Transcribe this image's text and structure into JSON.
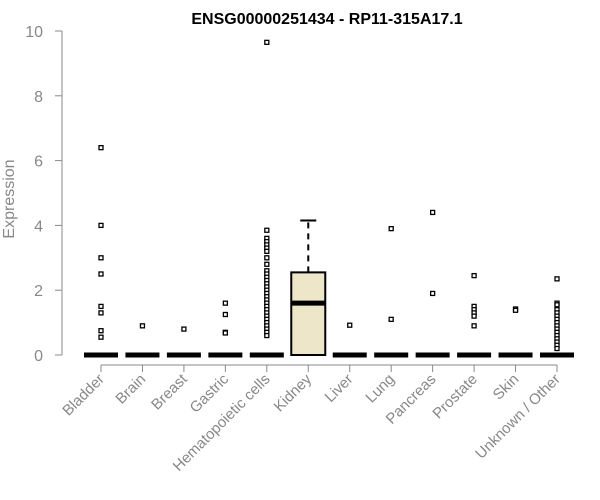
{
  "chart_data": {
    "type": "boxplot",
    "title": "ENSG00000251434 - RP11-315A17.1",
    "xlabel": "",
    "ylabel": "Expression",
    "ylim": [
      0,
      10
    ],
    "yticks": [
      0,
      2,
      4,
      6,
      8,
      10
    ],
    "grid": false,
    "categories": [
      "Bladder",
      "Brain",
      "Breast",
      "Gastric",
      "Hematopoietic cells",
      "Kidney",
      "Liver",
      "Lung",
      "Pancreas",
      "Prostate",
      "Skin",
      "Unknown / Other"
    ],
    "boxes": [
      {
        "category": "Bladder",
        "q1": 0,
        "median": 0,
        "q3": 0,
        "whisker_low": 0,
        "whisker_high": 0,
        "outliers": [
          6.4,
          4.0,
          3.0,
          2.5,
          1.5,
          1.3,
          0.75,
          0.55
        ]
      },
      {
        "category": "Brain",
        "q1": 0,
        "median": 0,
        "q3": 0,
        "whisker_low": 0,
        "whisker_high": 0,
        "outliers": [
          0.9
        ]
      },
      {
        "category": "Breast",
        "q1": 0,
        "median": 0,
        "q3": 0,
        "whisker_low": 0,
        "whisker_high": 0,
        "outliers": [
          0.8
        ]
      },
      {
        "category": "Gastric",
        "q1": 0,
        "median": 0,
        "q3": 0,
        "whisker_low": 0,
        "whisker_high": 0,
        "outliers": [
          1.6,
          1.25,
          0.7,
          0.68
        ]
      },
      {
        "category": "Hematopoietic cells",
        "q1": 0,
        "median": 0,
        "q3": 0,
        "whisker_low": 0,
        "whisker_high": 0,
        "outliers": [
          9.65,
          3.85,
          3.6,
          3.5,
          3.4,
          3.3,
          3.2,
          3.0,
          2.8,
          2.6,
          2.5,
          2.4,
          2.3,
          2.2,
          2.1,
          2.0,
          1.9,
          1.8,
          1.7,
          1.6,
          1.5,
          1.4,
          1.3,
          1.2,
          1.1,
          1.0,
          0.9,
          0.8,
          0.7,
          0.6
        ]
      },
      {
        "category": "Kidney",
        "q1": 0,
        "median": 1.6,
        "q3": 2.55,
        "whisker_low": 0,
        "whisker_high": 4.15,
        "outliers": [],
        "fill": "#eee6c9"
      },
      {
        "category": "Liver",
        "q1": 0,
        "median": 0,
        "q3": 0,
        "whisker_low": 0,
        "whisker_high": 0,
        "outliers": [
          0.92
        ]
      },
      {
        "category": "Lung",
        "q1": 0,
        "median": 0,
        "q3": 0,
        "whisker_low": 0,
        "whisker_high": 0,
        "outliers": [
          3.9,
          1.1
        ]
      },
      {
        "category": "Pancreas",
        "q1": 0,
        "median": 0,
        "q3": 0,
        "whisker_low": 0,
        "whisker_high": 0,
        "outliers": [
          4.4,
          1.9
        ]
      },
      {
        "category": "Prostate",
        "q1": 0,
        "median": 0,
        "q3": 0,
        "whisker_low": 0,
        "whisker_high": 0,
        "outliers": [
          2.45,
          1.5,
          1.4,
          1.3,
          1.2,
          0.9
        ]
      },
      {
        "category": "Skin",
        "q1": 0,
        "median": 0,
        "q3": 0,
        "whisker_low": 0,
        "whisker_high": 0,
        "outliers": [
          1.42,
          1.38
        ]
      },
      {
        "category": "Unknown / Other",
        "q1": 0,
        "median": 0,
        "q3": 0,
        "whisker_low": 0,
        "whisker_high": 0,
        "outliers": [
          2.35,
          1.6,
          1.55,
          1.4,
          1.3,
          1.2,
          1.1,
          1.0,
          0.9,
          0.8,
          0.7,
          0.6,
          0.5,
          0.4,
          0.3,
          0.2
        ]
      }
    ],
    "colors": {
      "box_fill": "#eee6c9",
      "box_stroke": "#000000",
      "axis": "#888888",
      "text_muted": "#888888",
      "title": "#000000"
    }
  }
}
